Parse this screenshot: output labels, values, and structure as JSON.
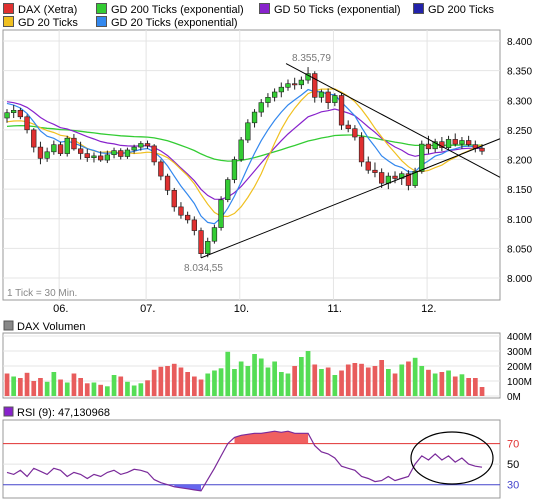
{
  "legend": [
    {
      "label": "DAX (Xetra)",
      "color": "#e03030"
    },
    {
      "label": "GD 200 Ticks (exponential)",
      "color": "#33cc33"
    },
    {
      "label": "GD 50 Ticks (exponential)",
      "color": "#8822cc"
    },
    {
      "label": "GD 200 Ticks",
      "color": "#2222aa"
    },
    {
      "label": "GD 20 Ticks",
      "color": "#f0c020"
    },
    {
      "label": "GD 20 Ticks (exponential)",
      "color": "#3388ee"
    }
  ],
  "chart_data": [
    {
      "type": "candlestick",
      "x_ticks": [
        "06.",
        "07.",
        "10.",
        "11.",
        "12."
      ],
      "ylim": [
        7.95,
        8.4
      ],
      "y_ticks": [
        "8.400",
        "8.350",
        "8.300",
        "8.250",
        "8.200",
        "8.150",
        "8.100",
        "8.050",
        "8.000"
      ],
      "annotations": {
        "high": "8.355,79",
        "low": "8.034,55"
      },
      "footnote": "1 Tick = 30 Min.",
      "candles": [
        [
          8.27,
          8.285,
          8.262,
          8.279
        ],
        [
          8.279,
          8.292,
          8.27,
          8.283
        ],
        [
          8.283,
          8.287,
          8.268,
          8.272
        ],
        [
          8.272,
          8.276,
          8.244,
          8.25
        ],
        [
          8.25,
          8.253,
          8.212,
          8.221
        ],
        [
          8.221,
          8.23,
          8.192,
          8.202
        ],
        [
          8.202,
          8.22,
          8.196,
          8.213
        ],
        [
          8.213,
          8.232,
          8.208,
          8.225
        ],
        [
          8.225,
          8.23,
          8.206,
          8.21
        ],
        [
          8.21,
          8.24,
          8.205,
          8.236
        ],
        [
          8.236,
          8.243,
          8.215,
          8.218
        ],
        [
          8.218,
          8.23,
          8.2,
          8.21
        ],
        [
          8.21,
          8.218,
          8.196,
          8.203
        ],
        [
          8.203,
          8.212,
          8.195,
          8.206
        ],
        [
          8.206,
          8.214,
          8.196,
          8.199
        ],
        [
          8.199,
          8.215,
          8.194,
          8.208
        ],
        [
          8.208,
          8.22,
          8.202,
          8.215
        ],
        [
          8.215,
          8.219,
          8.2,
          8.205
        ],
        [
          8.205,
          8.22,
          8.201,
          8.216
        ],
        [
          8.216,
          8.225,
          8.21,
          8.221
        ],
        [
          8.221,
          8.231,
          8.215,
          8.227
        ],
        [
          8.227,
          8.232,
          8.218,
          8.223
        ],
        [
          8.223,
          8.226,
          8.19,
          8.196
        ],
        [
          8.196,
          8.2,
          8.165,
          8.172
        ],
        [
          8.172,
          8.176,
          8.14,
          8.148
        ],
        [
          8.148,
          8.152,
          8.112,
          8.12
        ],
        [
          8.12,
          8.128,
          8.1,
          8.106
        ],
        [
          8.106,
          8.112,
          8.092,
          8.098
        ],
        [
          8.098,
          8.104,
          8.072,
          8.08
        ],
        [
          8.08,
          8.085,
          8.034,
          8.041
        ],
        [
          8.041,
          8.068,
          8.035,
          8.062
        ],
        [
          8.062,
          8.09,
          8.058,
          8.085
        ],
        [
          8.085,
          8.138,
          8.08,
          8.132
        ],
        [
          8.132,
          8.17,
          8.128,
          8.166
        ],
        [
          8.166,
          8.205,
          8.16,
          8.2
        ],
        [
          8.2,
          8.238,
          8.196,
          8.233
        ],
        [
          8.233,
          8.268,
          8.228,
          8.262
        ],
        [
          8.262,
          8.285,
          8.254,
          8.28
        ],
        [
          8.28,
          8.302,
          8.272,
          8.296
        ],
        [
          8.296,
          8.312,
          8.288,
          8.305
        ],
        [
          8.305,
          8.32,
          8.298,
          8.314
        ],
        [
          8.314,
          8.33,
          8.305,
          8.322
        ],
        [
          8.322,
          8.335,
          8.316,
          8.328
        ],
        [
          8.328,
          8.338,
          8.318,
          8.326
        ],
        [
          8.326,
          8.34,
          8.319,
          8.334
        ],
        [
          8.334,
          8.356,
          8.328,
          8.345
        ],
        [
          8.345,
          8.349,
          8.296,
          8.305
        ],
        [
          8.305,
          8.318,
          8.296,
          8.314
        ],
        [
          8.314,
          8.32,
          8.285,
          8.296
        ],
        [
          8.296,
          8.312,
          8.29,
          8.308
        ],
        [
          8.308,
          8.312,
          8.25,
          8.258
        ],
        [
          8.258,
          8.266,
          8.246,
          8.252
        ],
        [
          8.252,
          8.258,
          8.232,
          8.238
        ],
        [
          8.238,
          8.246,
          8.188,
          8.196
        ],
        [
          8.196,
          8.205,
          8.176,
          8.182
        ],
        [
          8.182,
          8.195,
          8.17,
          8.178
        ],
        [
          8.178,
          8.185,
          8.152,
          8.16
        ],
        [
          8.16,
          8.178,
          8.15,
          8.172
        ],
        [
          8.172,
          8.18,
          8.16,
          8.168
        ],
        [
          8.168,
          8.18,
          8.157,
          8.176
        ],
        [
          8.176,
          8.182,
          8.148,
          8.156
        ],
        [
          8.156,
          8.186,
          8.152,
          8.18
        ],
        [
          8.18,
          8.232,
          8.176,
          8.226
        ],
        [
          8.226,
          8.24,
          8.21,
          8.218
        ],
        [
          8.218,
          8.235,
          8.212,
          8.23
        ],
        [
          8.23,
          8.238,
          8.214,
          8.22
        ],
        [
          8.22,
          8.24,
          8.216,
          8.234
        ],
        [
          8.234,
          8.244,
          8.222,
          8.226
        ],
        [
          8.226,
          8.238,
          8.218,
          8.232
        ],
        [
          8.232,
          8.24,
          8.222,
          8.225
        ],
        [
          8.225,
          8.232,
          8.212,
          8.219
        ],
        [
          8.219,
          8.226,
          8.208,
          8.214
        ]
      ]
    },
    {
      "type": "bar",
      "title": "DAX Volumen",
      "y_ticks": [
        "400M",
        "300M",
        "200M",
        "100M",
        "0M"
      ],
      "ylim": [
        0,
        400
      ],
      "values": [
        150,
        130,
        120,
        155,
        100,
        120,
        95,
        160,
        110,
        90,
        150,
        120,
        85,
        90,
        75,
        65,
        140,
        130,
        95,
        70,
        85,
        105,
        175,
        195,
        200,
        215,
        190,
        160,
        130,
        110,
        150,
        170,
        185,
        295,
        180,
        230,
        200,
        280,
        250,
        190,
        230,
        160,
        150,
        200,
        260,
        300,
        210,
        180,
        190,
        140,
        170,
        210,
        220,
        215,
        190,
        200,
        240,
        180,
        150,
        210,
        230,
        255,
        200,
        175,
        150,
        160,
        170,
        130,
        145,
        120,
        120,
        60
      ],
      "colors": [
        "r",
        "g",
        "r",
        "r",
        "r",
        "r",
        "g",
        "g",
        "r",
        "g",
        "r",
        "r",
        "r",
        "g",
        "r",
        "g",
        "g",
        "r",
        "g",
        "g",
        "g",
        "r",
        "r",
        "r",
        "r",
        "r",
        "r",
        "r",
        "r",
        "r",
        "g",
        "g",
        "g",
        "g",
        "g",
        "g",
        "g",
        "g",
        "g",
        "g",
        "g",
        "g",
        "g",
        "r",
        "g",
        "g",
        "r",
        "g",
        "r",
        "g",
        "r",
        "r",
        "r",
        "r",
        "r",
        "r",
        "r",
        "g",
        "r",
        "g",
        "r",
        "g",
        "g",
        "r",
        "g",
        "r",
        "g",
        "r",
        "g",
        "r",
        "r",
        "r"
      ]
    },
    {
      "type": "line",
      "title": "RSI (9): 47,130968",
      "y_ticks": [
        "70",
        "50",
        "30"
      ],
      "ylim": [
        20,
        90
      ],
      "values": [
        42,
        40,
        44,
        38,
        46,
        43,
        40,
        46,
        44,
        38,
        42,
        40,
        36,
        40,
        38,
        42,
        44,
        40,
        42,
        45,
        44,
        42,
        35,
        32,
        30,
        28,
        27,
        26,
        25,
        24,
        35,
        46,
        58,
        70,
        76,
        78,
        79,
        80,
        80,
        81,
        82,
        81,
        82,
        80,
        80,
        80,
        68,
        62,
        60,
        56,
        48,
        46,
        44,
        38,
        36,
        33,
        34,
        38,
        34,
        36,
        38,
        50,
        58,
        54,
        60,
        54,
        58,
        52,
        56,
        50,
        48,
        47
      ]
    }
  ]
}
